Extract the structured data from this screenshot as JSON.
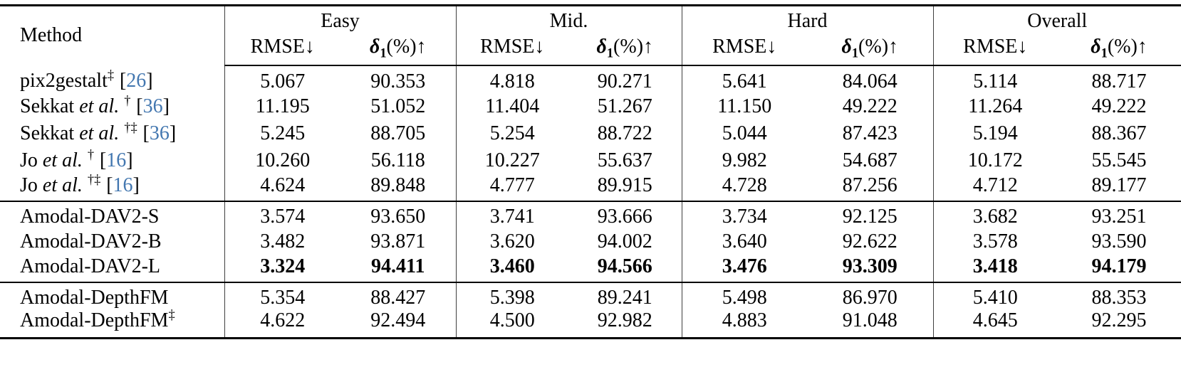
{
  "table": {
    "header": {
      "method_label": "Method",
      "groups": [
        "Easy",
        "Mid.",
        "Hard",
        "Overall"
      ],
      "rmse_label": "RMSE↓",
      "delta": {
        "sym": "δ",
        "sub": "1",
        "rest": "(%)↑"
      }
    },
    "rows": [
      {
        "prefix": "pix2gestalt",
        "italic": "",
        "sup": "‡",
        "cite_open": "[",
        "cite_num": "26",
        "cite_close": "]",
        "values": [
          "5.067",
          "90.353",
          "4.818",
          "90.271",
          "5.641",
          "84.064",
          "5.114",
          "88.717"
        ]
      },
      {
        "prefix": "Sekkat ",
        "italic": "et al. ",
        "sup": "†",
        "cite_open": "[",
        "cite_num": "36",
        "cite_close": "]",
        "values": [
          "11.195",
          "51.052",
          "11.404",
          "51.267",
          "11.150",
          "49.222",
          "11.264",
          "49.222"
        ]
      },
      {
        "prefix": "Sekkat ",
        "italic": "et al. ",
        "sup": "†‡",
        "cite_open": "[",
        "cite_num": "36",
        "cite_close": "]",
        "values": [
          "5.245",
          "88.705",
          "5.254",
          "88.722",
          "5.044",
          "87.423",
          "5.194",
          "88.367"
        ]
      },
      {
        "prefix": "Jo ",
        "italic": "et al. ",
        "sup": "†",
        "cite_open": "[",
        "cite_num": "16",
        "cite_close": "]",
        "values": [
          "10.260",
          "56.118",
          "10.227",
          "55.637",
          "9.982",
          "54.687",
          "10.172",
          "55.545"
        ]
      },
      {
        "prefix": "Jo ",
        "italic": "et al. ",
        "sup": "†‡",
        "cite_open": "[",
        "cite_num": "16",
        "cite_close": "]",
        "values": [
          "4.624",
          "89.848",
          "4.777",
          "89.915",
          "4.728",
          "87.256",
          "4.712",
          "89.177"
        ]
      },
      {
        "prefix": "Amodal-DAV2-S",
        "italic": "",
        "sup": "",
        "cite_open": "",
        "cite_num": "",
        "cite_close": "",
        "values": [
          "3.574",
          "93.650",
          "3.741",
          "93.666",
          "3.734",
          "92.125",
          "3.682",
          "93.251"
        ]
      },
      {
        "prefix": "Amodal-DAV2-B",
        "italic": "",
        "sup": "",
        "cite_open": "",
        "cite_num": "",
        "cite_close": "",
        "values": [
          "3.482",
          "93.871",
          "3.620",
          "94.002",
          "3.640",
          "92.622",
          "3.578",
          "93.590"
        ]
      },
      {
        "prefix": "Amodal-DAV2-L",
        "italic": "",
        "sup": "",
        "cite_open": "",
        "cite_num": "",
        "cite_close": "",
        "values": [
          "3.324",
          "94.411",
          "3.460",
          "94.566",
          "3.476",
          "93.309",
          "3.418",
          "94.179"
        ]
      },
      {
        "prefix": "Amodal-DepthFM",
        "italic": "",
        "sup": "",
        "cite_open": "",
        "cite_num": "",
        "cite_close": "",
        "values": [
          "5.354",
          "88.427",
          "5.398",
          "89.241",
          "5.498",
          "86.970",
          "5.410",
          "88.353"
        ]
      },
      {
        "prefix": "Amodal-DepthFM",
        "italic": "",
        "sup": "‡",
        "cite_open": "",
        "cite_num": "",
        "cite_close": "",
        "values": [
          "4.622",
          "92.494",
          "4.500",
          "92.982",
          "4.883",
          "91.048",
          "4.645",
          "92.295"
        ]
      }
    ],
    "colors": {
      "citation_blue": "#4377b0"
    }
  }
}
